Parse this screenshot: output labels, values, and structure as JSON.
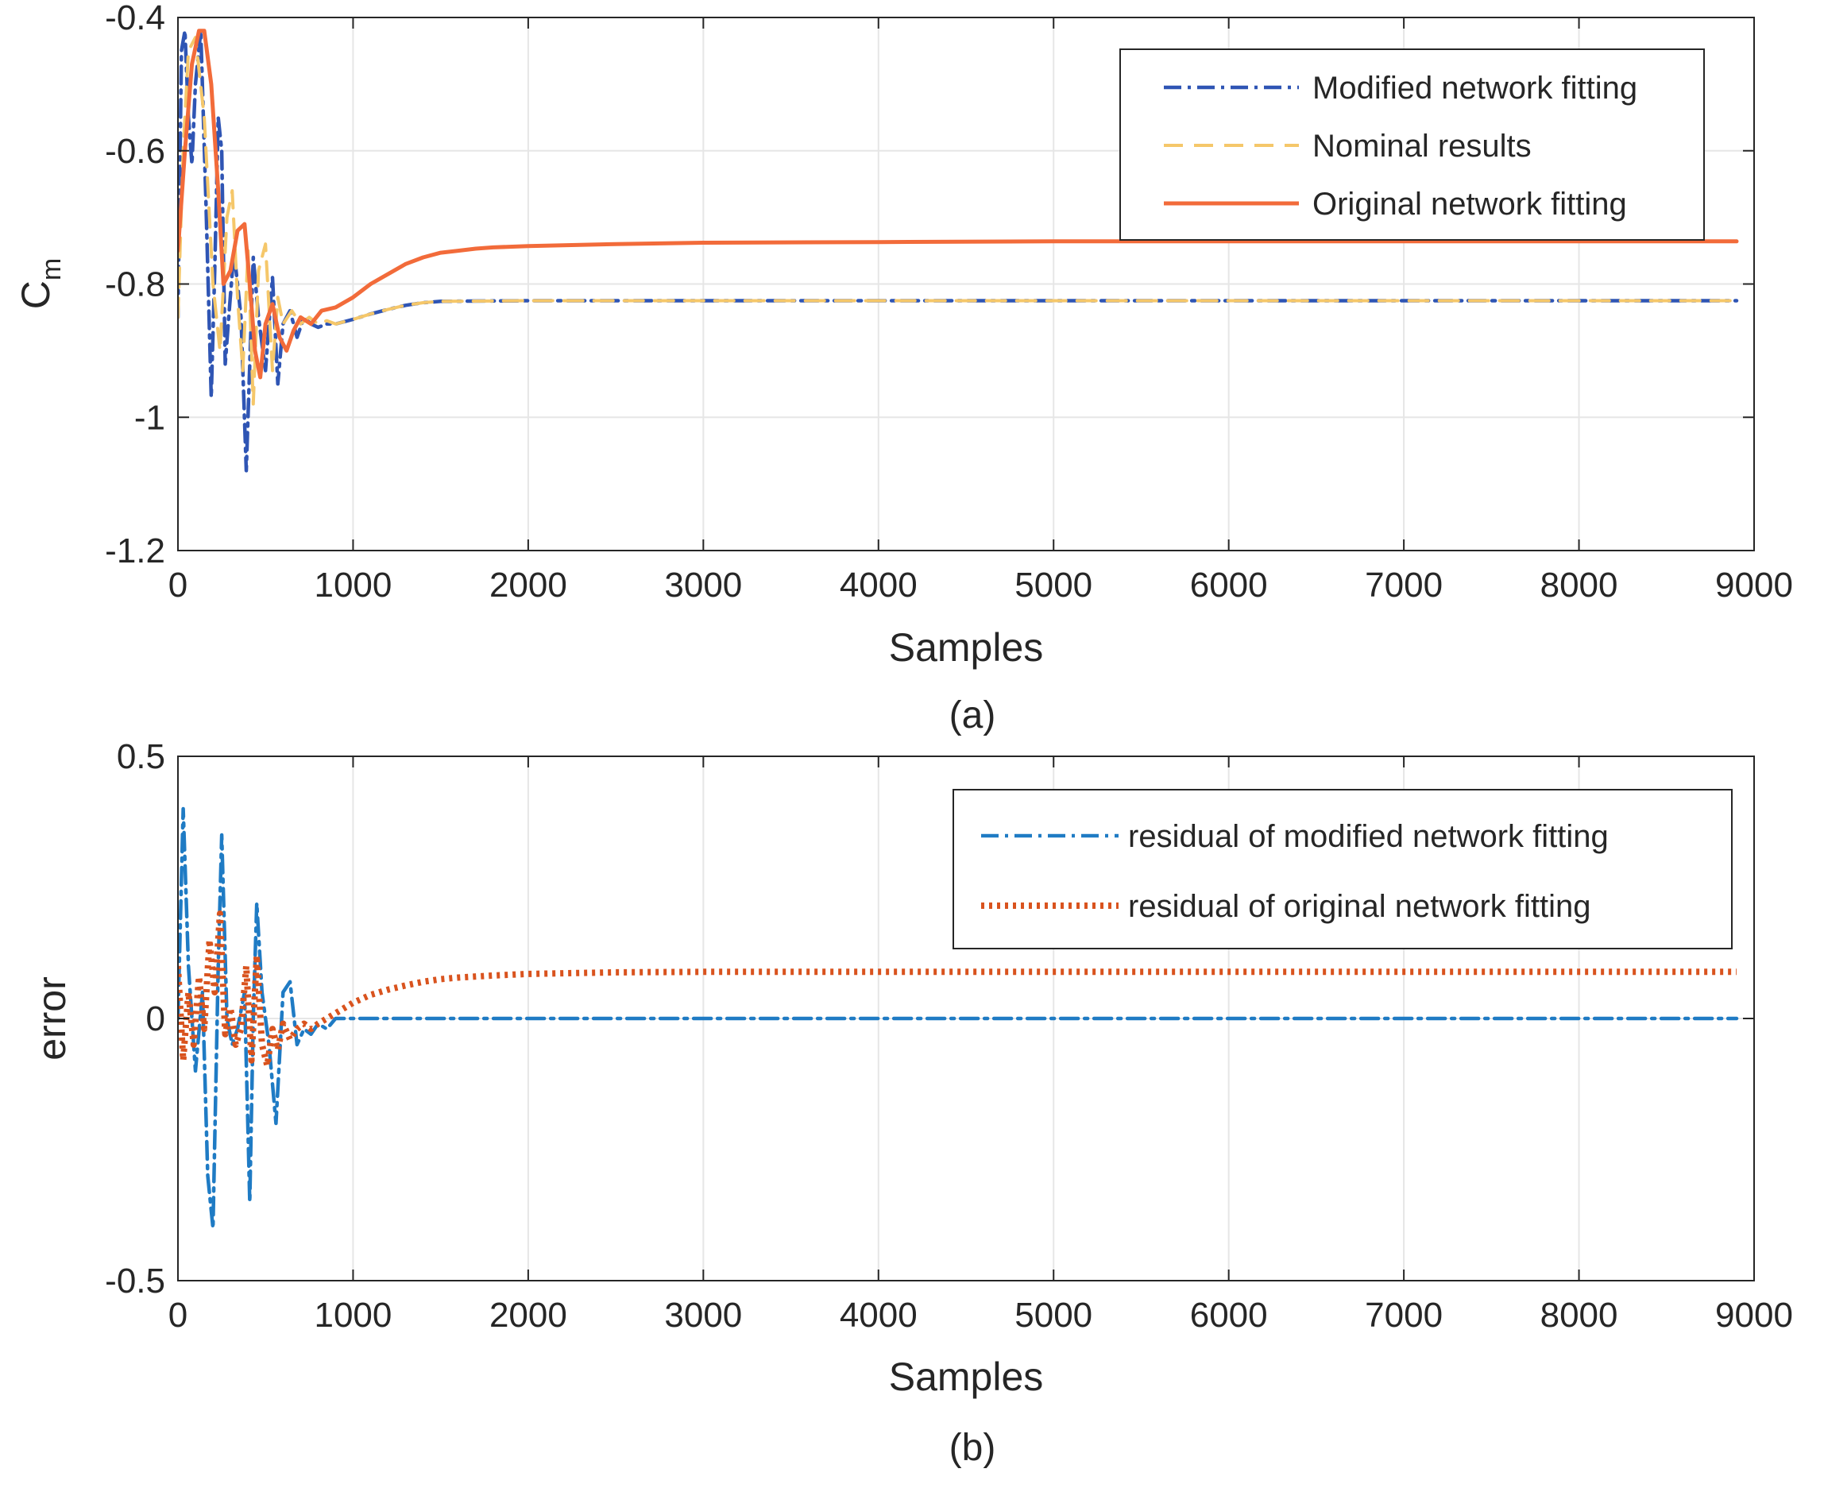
{
  "colors": {
    "modified": "#2F55B4",
    "nominal": "#F5C76A",
    "original": "#F26B3A",
    "residual_modified": "#1F7BC4",
    "residual_original": "#D9531E",
    "grid": "#E6E6E6",
    "axis": "#262626"
  },
  "chart_data": [
    {
      "type": "line",
      "subplot_label": "(a)",
      "title": "",
      "xlabel": "Samples",
      "ylabel": "C",
      "ylabel_subscript": "m",
      "xlim": [
        0,
        9000
      ],
      "ylim": [
        -1.2,
        -0.4
      ],
      "xticks": [
        0,
        1000,
        2000,
        3000,
        4000,
        5000,
        6000,
        7000,
        8000,
        9000
      ],
      "xtick_labels": [
        "0",
        "1000",
        "2000",
        "3000",
        "4000",
        "5000",
        "6000",
        "7000",
        "8000",
        "9000"
      ],
      "yticks": [
        -1.2,
        -1,
        -0.8,
        -0.6,
        -0.4
      ],
      "ytick_labels": [
        "-1.2",
        "-1",
        "-0.8",
        "-0.6",
        "-0.4"
      ],
      "grid": true,
      "legend_position": "top-right",
      "series": [
        {
          "name": "Modified network fitting",
          "style": "dashdot",
          "x": [
            0,
            20,
            40,
            60,
            80,
            100,
            130,
            160,
            190,
            210,
            230,
            250,
            270,
            290,
            320,
            360,
            390,
            410,
            430,
            460,
            500,
            540,
            570,
            600,
            640,
            680,
            720,
            760,
            800,
            850,
            900,
            1000,
            1100,
            1200,
            1300,
            1400,
            1500,
            2000,
            3000,
            4000,
            5000,
            6000,
            7000,
            8000,
            8900
          ],
          "y": [
            -0.85,
            -0.45,
            -0.42,
            -0.55,
            -0.62,
            -0.5,
            -0.42,
            -0.68,
            -0.97,
            -0.78,
            -0.55,
            -0.6,
            -0.92,
            -0.85,
            -0.75,
            -0.85,
            -1.08,
            -0.92,
            -0.76,
            -0.85,
            -0.93,
            -0.79,
            -0.95,
            -0.86,
            -0.84,
            -0.88,
            -0.85,
            -0.86,
            -0.865,
            -0.86,
            -0.86,
            -0.853,
            -0.845,
            -0.838,
            -0.832,
            -0.828,
            -0.826,
            -0.825,
            -0.825,
            -0.825,
            -0.825,
            -0.825,
            -0.825,
            -0.825,
            -0.825
          ]
        },
        {
          "name": "Nominal results",
          "style": "dashed",
          "x": [
            0,
            30,
            60,
            100,
            150,
            200,
            240,
            280,
            310,
            340,
            370,
            400,
            430,
            460,
            500,
            540,
            570,
            600,
            650,
            700,
            750,
            800,
            850,
            900,
            1000,
            1100,
            1200,
            1300,
            1400,
            1500,
            2000,
            3000,
            4000,
            5000,
            6000,
            7000,
            8000,
            8900
          ],
          "y": [
            -0.85,
            -0.6,
            -0.45,
            -0.43,
            -0.55,
            -0.8,
            -0.9,
            -0.7,
            -0.66,
            -0.82,
            -0.93,
            -0.75,
            -0.98,
            -0.78,
            -0.74,
            -0.93,
            -0.82,
            -0.86,
            -0.84,
            -0.86,
            -0.85,
            -0.86,
            -0.855,
            -0.86,
            -0.853,
            -0.845,
            -0.838,
            -0.832,
            -0.828,
            -0.826,
            -0.825,
            -0.825,
            -0.825,
            -0.825,
            -0.825,
            -0.825,
            -0.825,
            -0.825
          ]
        },
        {
          "name": "Original network fitting",
          "style": "solid",
          "x": [
            0,
            40,
            80,
            120,
            150,
            190,
            230,
            260,
            300,
            340,
            380,
            410,
            440,
            470,
            500,
            540,
            580,
            620,
            660,
            700,
            760,
            820,
            900,
            1000,
            1100,
            1200,
            1300,
            1400,
            1500,
            1600,
            1700,
            1800,
            2000,
            2500,
            3000,
            4000,
            5000,
            6000,
            7000,
            8000,
            8900
          ],
          "y": [
            -0.75,
            -0.6,
            -0.47,
            -0.42,
            -0.42,
            -0.5,
            -0.66,
            -0.8,
            -0.78,
            -0.72,
            -0.71,
            -0.8,
            -0.9,
            -0.94,
            -0.86,
            -0.83,
            -0.88,
            -0.9,
            -0.87,
            -0.85,
            -0.86,
            -0.84,
            -0.835,
            -0.82,
            -0.8,
            -0.785,
            -0.77,
            -0.76,
            -0.753,
            -0.75,
            -0.747,
            -0.745,
            -0.743,
            -0.74,
            -0.738,
            -0.737,
            -0.736,
            -0.736,
            -0.736,
            -0.736,
            -0.736
          ]
        }
      ]
    },
    {
      "type": "line",
      "subplot_label": "(b)",
      "title": "",
      "xlabel": "Samples",
      "ylabel": "error",
      "xlim": [
        0,
        9000
      ],
      "ylim": [
        -0.5,
        0.5
      ],
      "xticks": [
        0,
        1000,
        2000,
        3000,
        4000,
        5000,
        6000,
        7000,
        8000,
        9000
      ],
      "xtick_labels": [
        "0",
        "1000",
        "2000",
        "3000",
        "4000",
        "5000",
        "6000",
        "7000",
        "8000",
        "9000"
      ],
      "yticks": [
        -0.5,
        0,
        0.5
      ],
      "ytick_labels": [
        "-0.5",
        "0",
        "0.5"
      ],
      "grid": true,
      "legend_position": "top-right",
      "series": [
        {
          "name": "residual of modified network fitting",
          "style": "dashdot",
          "x": [
            0,
            30,
            60,
            100,
            140,
            170,
            200,
            230,
            250,
            280,
            310,
            340,
            380,
            410,
            430,
            450,
            480,
            520,
            560,
            600,
            640,
            680,
            720,
            760,
            800,
            850,
            900,
            1000,
            1500,
            2000,
            3000,
            4000,
            5000,
            6000,
            7000,
            8000,
            8900
          ],
          "y": [
            0,
            0.4,
            0.1,
            -0.1,
            0.05,
            -0.3,
            -0.4,
            0.1,
            0.35,
            0.0,
            -0.05,
            -0.02,
            0.05,
            -0.35,
            0.0,
            0.22,
            0.05,
            -0.05,
            -0.2,
            0.05,
            0.07,
            -0.05,
            -0.02,
            -0.03,
            -0.01,
            -0.02,
            0.0,
            0.0,
            0.0,
            0.0,
            0.0,
            0.0,
            0.0,
            0.0,
            0.0,
            0.0,
            0.0
          ]
        },
        {
          "name": "residual of original network fitting",
          "style": "dotted",
          "x": [
            0,
            30,
            60,
            90,
            120,
            150,
            180,
            210,
            240,
            270,
            300,
            330,
            360,
            390,
            420,
            450,
            480,
            510,
            540,
            570,
            600,
            640,
            680,
            720,
            760,
            800,
            850,
            900,
            1000,
            1100,
            1200,
            1300,
            1400,
            1500,
            1600,
            1800,
            2000,
            2500,
            3000,
            4000,
            5000,
            6000,
            7000,
            8000,
            8900
          ],
          "y": [
            0.1,
            -0.08,
            0.05,
            -0.05,
            0.08,
            -0.02,
            0.15,
            0.05,
            0.2,
            -0.03,
            0.02,
            -0.05,
            -0.02,
            0.1,
            -0.08,
            0.12,
            -0.05,
            -0.09,
            -0.02,
            -0.06,
            -0.01,
            -0.04,
            -0.02,
            -0.01,
            -0.02,
            -0.01,
            0.0,
            0.01,
            0.03,
            0.045,
            0.055,
            0.063,
            0.07,
            0.075,
            0.078,
            0.082,
            0.085,
            0.088,
            0.089,
            0.089,
            0.089,
            0.089,
            0.089,
            0.089,
            0.089
          ]
        }
      ]
    }
  ]
}
